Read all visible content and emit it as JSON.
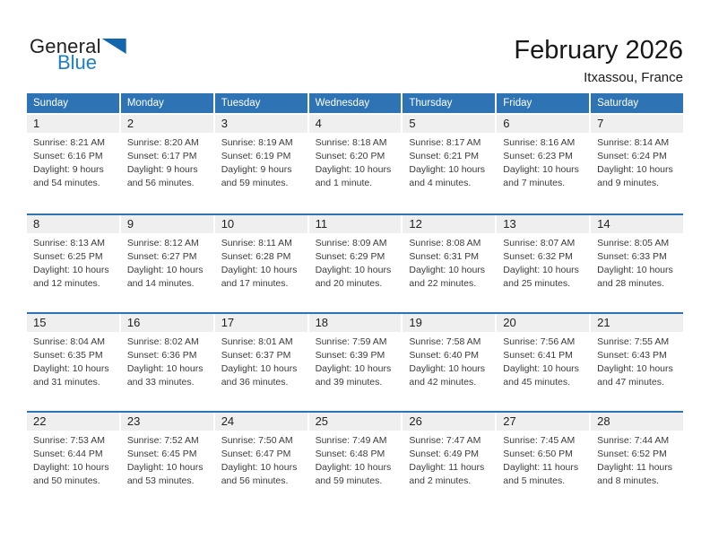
{
  "logo": {
    "part1": "General",
    "part2": "Blue"
  },
  "header": {
    "title": "February 2026",
    "subtitle": "Itxassou, France"
  },
  "colors": {
    "header_blue": "#2e74b5",
    "band_gray": "#efefef",
    "logo_blue": "#1b7fc4",
    "triangle_blue": "#1266ad",
    "body_text": "#3b3b3b"
  },
  "calendar": {
    "day_headers": [
      "Sunday",
      "Monday",
      "Tuesday",
      "Wednesday",
      "Thursday",
      "Friday",
      "Saturday"
    ],
    "labels": {
      "sunrise": "Sunrise:",
      "sunset": "Sunset:",
      "daylight": "Daylight:"
    },
    "weeks": [
      [
        {
          "day": "1",
          "sunrise": "8:21 AM",
          "sunset": "6:16 PM",
          "daylight": "9 hours and 54 minutes."
        },
        {
          "day": "2",
          "sunrise": "8:20 AM",
          "sunset": "6:17 PM",
          "daylight": "9 hours and 56 minutes."
        },
        {
          "day": "3",
          "sunrise": "8:19 AM",
          "sunset": "6:19 PM",
          "daylight": "9 hours and 59 minutes."
        },
        {
          "day": "4",
          "sunrise": "8:18 AM",
          "sunset": "6:20 PM",
          "daylight": "10 hours and 1 minute."
        },
        {
          "day": "5",
          "sunrise": "8:17 AM",
          "sunset": "6:21 PM",
          "daylight": "10 hours and 4 minutes."
        },
        {
          "day": "6",
          "sunrise": "8:16 AM",
          "sunset": "6:23 PM",
          "daylight": "10 hours and 7 minutes."
        },
        {
          "day": "7",
          "sunrise": "8:14 AM",
          "sunset": "6:24 PM",
          "daylight": "10 hours and 9 minutes."
        }
      ],
      [
        {
          "day": "8",
          "sunrise": "8:13 AM",
          "sunset": "6:25 PM",
          "daylight": "10 hours and 12 minutes."
        },
        {
          "day": "9",
          "sunrise": "8:12 AM",
          "sunset": "6:27 PM",
          "daylight": "10 hours and 14 minutes."
        },
        {
          "day": "10",
          "sunrise": "8:11 AM",
          "sunset": "6:28 PM",
          "daylight": "10 hours and 17 minutes."
        },
        {
          "day": "11",
          "sunrise": "8:09 AM",
          "sunset": "6:29 PM",
          "daylight": "10 hours and 20 minutes."
        },
        {
          "day": "12",
          "sunrise": "8:08 AM",
          "sunset": "6:31 PM",
          "daylight": "10 hours and 22 minutes."
        },
        {
          "day": "13",
          "sunrise": "8:07 AM",
          "sunset": "6:32 PM",
          "daylight": "10 hours and 25 minutes."
        },
        {
          "day": "14",
          "sunrise": "8:05 AM",
          "sunset": "6:33 PM",
          "daylight": "10 hours and 28 minutes."
        }
      ],
      [
        {
          "day": "15",
          "sunrise": "8:04 AM",
          "sunset": "6:35 PM",
          "daylight": "10 hours and 31 minutes."
        },
        {
          "day": "16",
          "sunrise": "8:02 AM",
          "sunset": "6:36 PM",
          "daylight": "10 hours and 33 minutes."
        },
        {
          "day": "17",
          "sunrise": "8:01 AM",
          "sunset": "6:37 PM",
          "daylight": "10 hours and 36 minutes."
        },
        {
          "day": "18",
          "sunrise": "7:59 AM",
          "sunset": "6:39 PM",
          "daylight": "10 hours and 39 minutes."
        },
        {
          "day": "19",
          "sunrise": "7:58 AM",
          "sunset": "6:40 PM",
          "daylight": "10 hours and 42 minutes."
        },
        {
          "day": "20",
          "sunrise": "7:56 AM",
          "sunset": "6:41 PM",
          "daylight": "10 hours and 45 minutes."
        },
        {
          "day": "21",
          "sunrise": "7:55 AM",
          "sunset": "6:43 PM",
          "daylight": "10 hours and 47 minutes."
        }
      ],
      [
        {
          "day": "22",
          "sunrise": "7:53 AM",
          "sunset": "6:44 PM",
          "daylight": "10 hours and 50 minutes."
        },
        {
          "day": "23",
          "sunrise": "7:52 AM",
          "sunset": "6:45 PM",
          "daylight": "10 hours and 53 minutes."
        },
        {
          "day": "24",
          "sunrise": "7:50 AM",
          "sunset": "6:47 PM",
          "daylight": "10 hours and 56 minutes."
        },
        {
          "day": "25",
          "sunrise": "7:49 AM",
          "sunset": "6:48 PM",
          "daylight": "10 hours and 59 minutes."
        },
        {
          "day": "26",
          "sunrise": "7:47 AM",
          "sunset": "6:49 PM",
          "daylight": "11 hours and 2 minutes."
        },
        {
          "day": "27",
          "sunrise": "7:45 AM",
          "sunset": "6:50 PM",
          "daylight": "11 hours and 5 minutes."
        },
        {
          "day": "28",
          "sunrise": "7:44 AM",
          "sunset": "6:52 PM",
          "daylight": "11 hours and 8 minutes."
        }
      ]
    ]
  }
}
